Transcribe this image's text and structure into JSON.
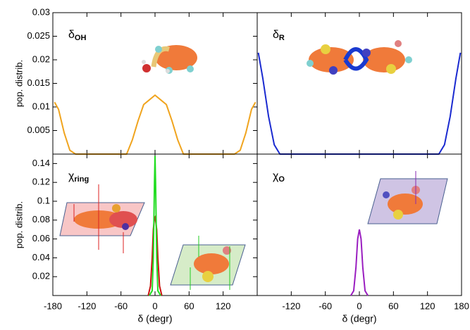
{
  "chart_data": [
    {
      "type": "line",
      "label": "δ",
      "label_sub": "OH",
      "ylabel": "pop. distrib.",
      "xlim": [
        -180,
        180
      ],
      "xticks": [
        -180,
        -120,
        -60,
        0,
        60,
        120,
        180
      ],
      "ylim": [
        0,
        0.03
      ],
      "yticks": [
        0.005,
        0.01,
        0.015,
        0.02,
        0.025,
        0.03
      ],
      "series": [
        {
          "color": "#f0a41e",
          "x": [
            -177,
            -170,
            -160,
            -150,
            -140,
            -50,
            -40,
            -30,
            -20,
            -10,
            0,
            10,
            20,
            30,
            40,
            50,
            140,
            150,
            160,
            170,
            177
          ],
          "values": [
            0.011,
            0.0095,
            0.0045,
            0.0008,
            0,
            0,
            0.003,
            0.007,
            0.0105,
            0.0115,
            0.0125,
            0.0115,
            0.0105,
            0.007,
            0.003,
            0,
            0,
            0.0008,
            0.0045,
            0.0095,
            0.011
          ]
        }
      ]
    },
    {
      "type": "line",
      "label": "δ",
      "label_sub": "R",
      "xlim": [
        -180,
        180
      ],
      "xticks": [
        -180,
        -120,
        -60,
        0,
        60,
        120,
        180
      ],
      "ylim": [
        0,
        0.03
      ],
      "series": [
        {
          "color": "#1a2ad0",
          "x": [
            -178,
            -170,
            -160,
            -150,
            -140,
            140,
            150,
            160,
            170,
            178
          ],
          "values": [
            0.0215,
            0.016,
            0.008,
            0.002,
            0,
            0,
            0.002,
            0.008,
            0.016,
            0.0215
          ]
        }
      ]
    },
    {
      "type": "line",
      "label": "χ",
      "label_sub": "ring",
      "ylabel": "pop. distrib.",
      "xlabel": "δ (degr)",
      "xlim": [
        -180,
        180
      ],
      "xticks": [
        -180,
        -120,
        -60,
        0,
        60,
        120
      ],
      "ylim": [
        0,
        0.15
      ],
      "yticks": [
        0.02,
        0.04,
        0.06,
        0.08,
        0.1,
        0.12,
        0.14
      ],
      "series": [
        {
          "color": "#cc1111",
          "x": [
            -12,
            -8,
            -5,
            -3,
            -1,
            0,
            1,
            3,
            5,
            8,
            12
          ],
          "values": [
            0,
            0.01,
            0.04,
            0.07,
            0.082,
            0.083,
            0.08,
            0.07,
            0.04,
            0.01,
            0
          ]
        },
        {
          "color": "#22dd22",
          "x": [
            -10,
            -5,
            -3,
            -1,
            0,
            1,
            3,
            5,
            10
          ],
          "values": [
            0,
            0.005,
            0.04,
            0.12,
            0.148,
            0.12,
            0.04,
            0.005,
            0
          ]
        }
      ]
    },
    {
      "type": "line",
      "label": "χ",
      "label_sub": "O",
      "xlabel": "δ (degr)",
      "xlim": [
        -180,
        180
      ],
      "xticks": [
        -120,
        -60,
        0,
        60,
        120,
        180
      ],
      "ylim": [
        0,
        0.15
      ],
      "series": [
        {
          "color": "#9a1ec0",
          "x": [
            -15,
            -10,
            -6,
            -3,
            0,
            3,
            6,
            10,
            15
          ],
          "values": [
            0,
            0.005,
            0.03,
            0.06,
            0.07,
            0.06,
            0.03,
            0.005,
            0
          ]
        }
      ]
    }
  ]
}
